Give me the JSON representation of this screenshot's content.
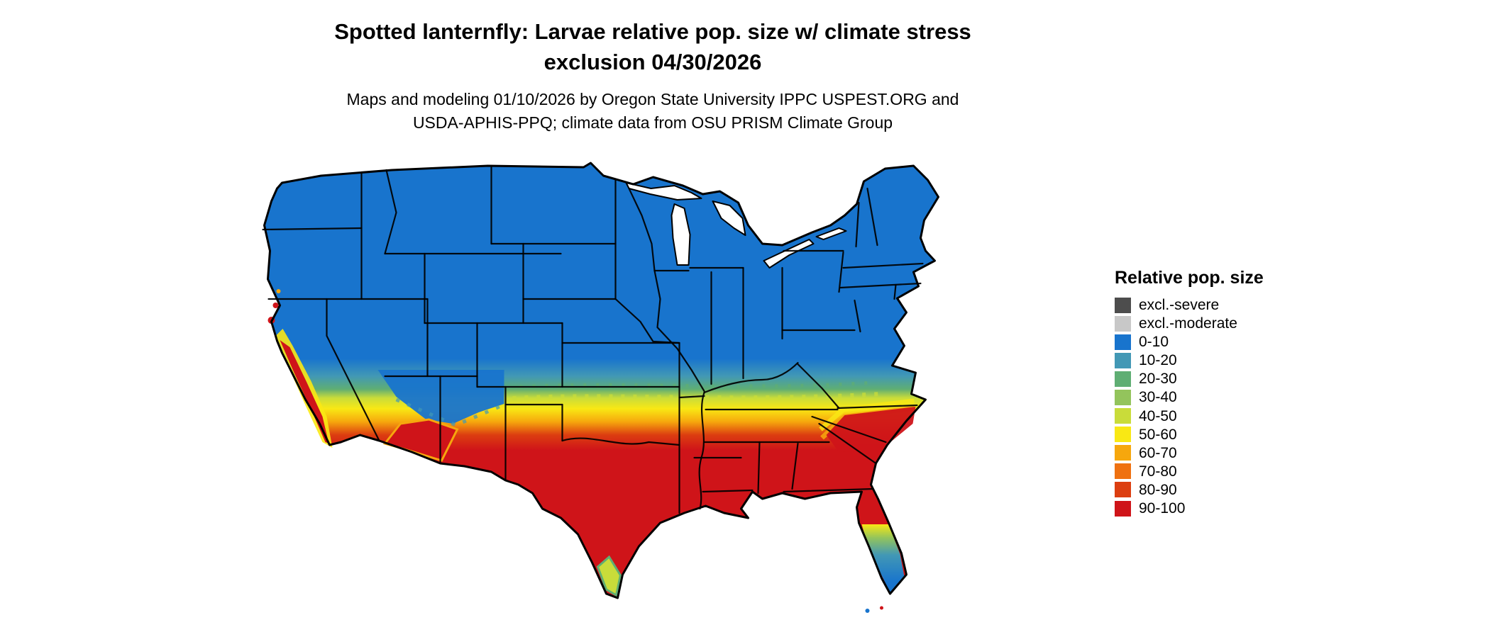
{
  "header": {
    "title_line1": "Spotted lanternfly: Larvae relative pop. size w/ climate stress",
    "title_line2": "exclusion 04/30/2026",
    "subtitle_line1": "Maps and modeling 01/10/2026 by Oregon State University IPPC USPEST.ORG and",
    "subtitle_line2": "USDA-APHIS-PPQ; climate data from OSU PRISM Climate Group"
  },
  "map": {
    "description": "Contiguous United States raster map of spotted lanternfly larvae relative population size; blue (low) across the northern states, transitioning through green, yellow and orange in a central band, red (high) across the southern states, red hotspot along the California coast, low (blue/green) zone at the southern tips of Florida and Texas",
    "colors": {
      "low": "#1874cd",
      "mid": "#f9e814",
      "high": "#cf1419",
      "border": "#000000",
      "water": "#ffffff"
    }
  },
  "legend": {
    "title": "Relative pop. size",
    "items": [
      {
        "label": "excl.-severe",
        "color": "#4d4d4d"
      },
      {
        "label": "excl.-moderate",
        "color": "#c8c8c8"
      },
      {
        "label": "0-10",
        "color": "#1874cd"
      },
      {
        "label": "10-20",
        "color": "#4298b5"
      },
      {
        "label": "20-30",
        "color": "#5fae73"
      },
      {
        "label": "30-40",
        "color": "#93c45c"
      },
      {
        "label": "40-50",
        "color": "#c9dc3a"
      },
      {
        "label": "50-60",
        "color": "#f9e814"
      },
      {
        "label": "60-70",
        "color": "#f6a70d"
      },
      {
        "label": "70-80",
        "color": "#ef7110"
      },
      {
        "label": "80-90",
        "color": "#dc3e10"
      },
      {
        "label": "90-100",
        "color": "#cf1419"
      }
    ]
  }
}
